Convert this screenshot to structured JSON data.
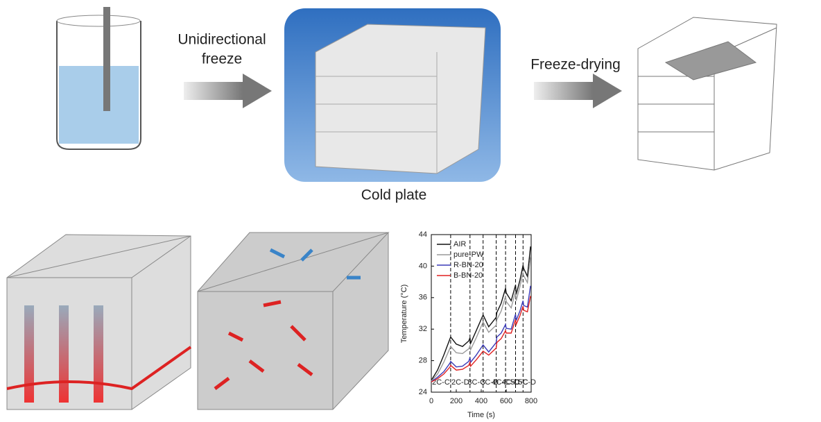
{
  "labels": {
    "unidirectional_freeze": [
      "Unidirectional",
      "freeze"
    ],
    "freeze_drying": "Freeze-drying",
    "cold_plate": "Cold plate"
  },
  "chart_data": {
    "type": "line",
    "x": [
      0,
      50,
      100,
      150,
      155,
      200,
      250,
      300,
      310,
      315,
      360,
      415,
      460,
      520,
      525,
      560,
      595,
      600,
      640,
      675,
      680,
      710,
      735,
      740,
      770,
      795
    ],
    "series": [
      {
        "name": "AIR",
        "color": "#111111",
        "values": [
          25.5,
          26.8,
          28.7,
          30.8,
          31,
          30.1,
          29.8,
          30.5,
          30.9,
          30.2,
          31.8,
          33.8,
          32.3,
          33.5,
          34.1,
          35.3,
          37.2,
          36.6,
          35.6,
          37.6,
          36.4,
          38.2,
          40.1,
          39.7,
          38.7,
          42.5
        ]
      },
      {
        "name": "pure-PW",
        "color": "#999999",
        "values": [
          25.4,
          26.3,
          27.8,
          29.6,
          29.8,
          29.0,
          28.9,
          29.5,
          29.9,
          29.4,
          30.9,
          32.9,
          31.6,
          32.5,
          33.2,
          34.3,
          36.2,
          35.5,
          34.7,
          36.8,
          35.6,
          37.4,
          39.2,
          38.8,
          37.9,
          41.2
        ]
      },
      {
        "name": "R-BN-20",
        "color": "#3a3ab8",
        "values": [
          25.3,
          25.9,
          26.6,
          27.7,
          27.9,
          27.2,
          27.3,
          27.9,
          28.4,
          27.8,
          28.7,
          30.0,
          29.1,
          30.3,
          31.0,
          31.5,
          32.6,
          32.1,
          32.0,
          33.9,
          33.1,
          34.3,
          35.6,
          35.0,
          34.8,
          37.5
        ]
      },
      {
        "name": "B-BN-20",
        "color": "#e02020",
        "values": [
          25.3,
          25.7,
          26.3,
          27.2,
          27.4,
          26.8,
          26.9,
          27.4,
          27.8,
          27.3,
          28.1,
          29.2,
          28.7,
          29.6,
          30.3,
          30.8,
          31.8,
          31.5,
          31.5,
          33.2,
          32.6,
          33.7,
          34.9,
          34.4,
          34.2,
          36.2
        ]
      }
    ],
    "xlabel": "Time (s)",
    "ylabel": "Temperature (°C)",
    "xlim": [
      0,
      800
    ],
    "xticks": [
      0,
      200,
      400,
      600,
      800
    ],
    "ylim": [
      24,
      44
    ],
    "yticks": [
      24,
      28,
      32,
      36,
      40,
      44
    ],
    "phase_boundaries": [
      155,
      310,
      415,
      520,
      595,
      675,
      735
    ],
    "phases": [
      "2C-C",
      "2C-D",
      "3C-C",
      "3C-D",
      "4C-C",
      "4C-D",
      "5C-C",
      "5C-D"
    ],
    "legend": "upper left"
  }
}
